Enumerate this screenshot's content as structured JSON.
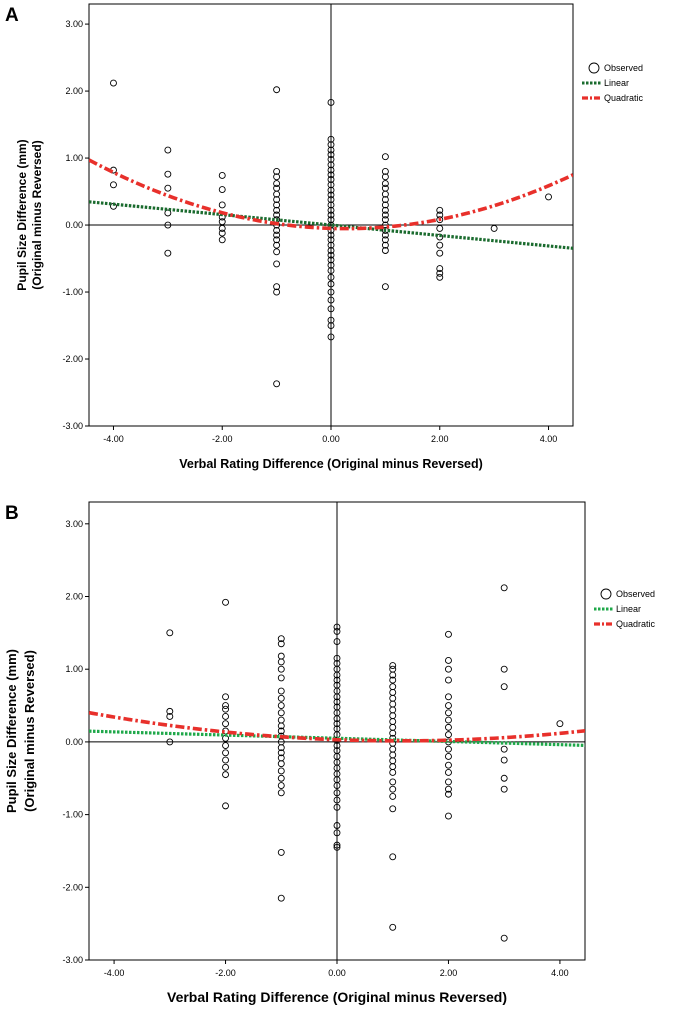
{
  "chart_data": [
    {
      "type": "scatter",
      "panel": "A",
      "xlabel": "Verbal Rating Difference (Original minus Reversed)",
      "ylabel_line1": "Pupil Size Difference (mm)",
      "ylabel_line2": "(Original minus Reversed)",
      "xlim": [
        -4.45,
        4.45
      ],
      "ylim": [
        -3.0,
        3.3
      ],
      "xticks": [
        -4,
        -2,
        0,
        2,
        4
      ],
      "xtick_labels": [
        "-4.00",
        "-2.00",
        "0.00",
        "2.00",
        "4.00"
      ],
      "yticks": [
        -3,
        -2,
        -1,
        0,
        1,
        2,
        3
      ],
      "ytick_labels": [
        "-3.00",
        "-2.00",
        "-1.00",
        "0.00",
        "1.00",
        "2.00",
        "3.00"
      ],
      "legend": [
        "Observed",
        "Linear",
        "Quadratic"
      ],
      "legend_position": "right",
      "fits": {
        "linear": {
          "intercept": 0.0,
          "slope": -0.078,
          "color": "#1a6b2e"
        },
        "quadratic": {
          "a": 0.046,
          "b": -0.025,
          "c": -0.05,
          "color": "#e8302b"
        }
      },
      "points": [
        [
          -4,
          2.12
        ],
        [
          -4,
          0.82
        ],
        [
          -4,
          0.6
        ],
        [
          -4,
          0.28
        ],
        [
          -3,
          1.12
        ],
        [
          -3,
          0.76
        ],
        [
          -3,
          0.55
        ],
        [
          -3,
          0.18
        ],
        [
          -3,
          0.0
        ],
        [
          -3,
          -0.42
        ],
        [
          -2,
          0.74
        ],
        [
          -2,
          0.53
        ],
        [
          -2,
          0.3
        ],
        [
          -2,
          0.12
        ],
        [
          -2,
          0.05
        ],
        [
          -2,
          -0.05
        ],
        [
          -2,
          -0.12
        ],
        [
          -2,
          -0.22
        ],
        [
          -1,
          2.02
        ],
        [
          -1,
          0.8
        ],
        [
          -1,
          0.72
        ],
        [
          -1,
          0.62
        ],
        [
          -1,
          0.55
        ],
        [
          -1,
          0.46
        ],
        [
          -1,
          0.38
        ],
        [
          -1,
          0.3
        ],
        [
          -1,
          0.22
        ],
        [
          -1,
          0.15
        ],
        [
          -1,
          0.08
        ],
        [
          -1,
          0.0
        ],
        [
          -1,
          -0.08
        ],
        [
          -1,
          -0.15
        ],
        [
          -1,
          -0.22
        ],
        [
          -1,
          -0.3
        ],
        [
          -1,
          -0.4
        ],
        [
          -1,
          -0.58
        ],
        [
          -1,
          -0.92
        ],
        [
          -1,
          -1.0
        ],
        [
          -1,
          -2.37
        ],
        [
          0,
          1.83
        ],
        [
          0,
          1.28
        ],
        [
          0,
          1.2
        ],
        [
          0,
          1.12
        ],
        [
          0,
          1.05
        ],
        [
          0,
          0.98
        ],
        [
          0,
          0.9
        ],
        [
          0,
          0.82
        ],
        [
          0,
          0.75
        ],
        [
          0,
          0.68
        ],
        [
          0,
          0.6
        ],
        [
          0,
          0.52
        ],
        [
          0,
          0.45
        ],
        [
          0,
          0.38
        ],
        [
          0,
          0.3
        ],
        [
          0,
          0.22
        ],
        [
          0,
          0.15
        ],
        [
          0,
          0.08
        ],
        [
          0,
          0.0
        ],
        [
          0,
          -0.08
        ],
        [
          0,
          -0.15
        ],
        [
          0,
          -0.22
        ],
        [
          0,
          -0.3
        ],
        [
          0,
          -0.38
        ],
        [
          0,
          -0.45
        ],
        [
          0,
          -0.52
        ],
        [
          0,
          -0.6
        ],
        [
          0,
          -0.68
        ],
        [
          0,
          -0.78
        ],
        [
          0,
          -0.88
        ],
        [
          0,
          -1.0
        ],
        [
          0,
          -1.12
        ],
        [
          0,
          -1.25
        ],
        [
          0,
          -1.42
        ],
        [
          0,
          -1.5
        ],
        [
          0,
          -1.67
        ],
        [
          1,
          1.02
        ],
        [
          1,
          0.8
        ],
        [
          1,
          0.72
        ],
        [
          1,
          0.62
        ],
        [
          1,
          0.55
        ],
        [
          1,
          0.46
        ],
        [
          1,
          0.38
        ],
        [
          1,
          0.3
        ],
        [
          1,
          0.22
        ],
        [
          1,
          0.15
        ],
        [
          1,
          0.08
        ],
        [
          1,
          0.0
        ],
        [
          1,
          -0.08
        ],
        [
          1,
          -0.15
        ],
        [
          1,
          -0.22
        ],
        [
          1,
          -0.3
        ],
        [
          1,
          -0.38
        ],
        [
          1,
          -0.92
        ],
        [
          2,
          0.22
        ],
        [
          2,
          0.15
        ],
        [
          2,
          0.08
        ],
        [
          2,
          -0.05
        ],
        [
          2,
          -0.18
        ],
        [
          2,
          -0.3
        ],
        [
          2,
          -0.42
        ],
        [
          2,
          -0.65
        ],
        [
          2,
          -0.72
        ],
        [
          2,
          -0.78
        ],
        [
          3,
          -0.05
        ],
        [
          4,
          0.42
        ]
      ]
    },
    {
      "type": "scatter",
      "panel": "B",
      "xlabel": "Verbal Rating Difference (Original minus Reversed)",
      "ylabel_line1": "Pupil Size Difference (mm)",
      "ylabel_line2": "(Original minus Reversed)",
      "xlim": [
        -4.45,
        4.45
      ],
      "ylim": [
        -3.0,
        3.3
      ],
      "xticks": [
        -4,
        -2,
        0,
        2,
        4
      ],
      "xtick_labels": [
        "-4.00",
        "-2.00",
        "0.00",
        "2.00",
        "4.00"
      ],
      "yticks": [
        -3,
        -2,
        -1,
        0,
        1,
        2,
        3
      ],
      "ytick_labels": [
        "-3.00",
        "-2.00",
        "-1.00",
        "0.00",
        "1.00",
        "2.00",
        "3.00"
      ],
      "legend": [
        "Observed",
        "Linear",
        "Quadratic"
      ],
      "legend_position": "right",
      "fits": {
        "linear": {
          "intercept": 0.05,
          "slope": -0.022,
          "color": "#1fa84a"
        },
        "quadratic": {
          "a": 0.0125,
          "b": -0.028,
          "c": 0.03,
          "color": "#e8302b"
        }
      },
      "points": [
        [
          -3,
          1.5
        ],
        [
          -3,
          0.42
        ],
        [
          -3,
          0.35
        ],
        [
          -3,
          0.0
        ],
        [
          -2,
          1.92
        ],
        [
          -2,
          0.62
        ],
        [
          -2,
          0.5
        ],
        [
          -2,
          0.45
        ],
        [
          -2,
          0.35
        ],
        [
          -2,
          0.25
        ],
        [
          -2,
          0.15
        ],
        [
          -2,
          0.05
        ],
        [
          -2,
          -0.05
        ],
        [
          -2,
          -0.15
        ],
        [
          -2,
          -0.25
        ],
        [
          -2,
          -0.35
        ],
        [
          -2,
          -0.45
        ],
        [
          -2,
          -0.88
        ],
        [
          -1,
          1.42
        ],
        [
          -1,
          1.35
        ],
        [
          -1,
          1.18
        ],
        [
          -1,
          1.1
        ],
        [
          -1,
          1.0
        ],
        [
          -1,
          0.88
        ],
        [
          -1,
          0.7
        ],
        [
          -1,
          0.6
        ],
        [
          -1,
          0.5
        ],
        [
          -1,
          0.4
        ],
        [
          -1,
          0.3
        ],
        [
          -1,
          0.22
        ],
        [
          -1,
          0.15
        ],
        [
          -1,
          0.08
        ],
        [
          -1,
          0.0
        ],
        [
          -1,
          -0.08
        ],
        [
          -1,
          -0.15
        ],
        [
          -1,
          -0.22
        ],
        [
          -1,
          -0.3
        ],
        [
          -1,
          -0.4
        ],
        [
          -1,
          -0.5
        ],
        [
          -1,
          -0.6
        ],
        [
          -1,
          -0.7
        ],
        [
          -1,
          -1.52
        ],
        [
          -1,
          -2.15
        ],
        [
          0,
          1.58
        ],
        [
          0,
          1.52
        ],
        [
          0,
          1.38
        ],
        [
          0,
          1.15
        ],
        [
          0,
          1.08
        ],
        [
          0,
          1.0
        ],
        [
          0,
          0.92
        ],
        [
          0,
          0.85
        ],
        [
          0,
          0.78
        ],
        [
          0,
          0.7
        ],
        [
          0,
          0.62
        ],
        [
          0,
          0.55
        ],
        [
          0,
          0.48
        ],
        [
          0,
          0.4
        ],
        [
          0,
          0.32
        ],
        [
          0,
          0.25
        ],
        [
          0,
          0.18
        ],
        [
          0,
          0.1
        ],
        [
          0,
          0.02
        ],
        [
          0,
          -0.05
        ],
        [
          0,
          -0.12
        ],
        [
          0,
          -0.2
        ],
        [
          0,
          -0.28
        ],
        [
          0,
          -0.36
        ],
        [
          0,
          -0.44
        ],
        [
          0,
          -0.52
        ],
        [
          0,
          -0.6
        ],
        [
          0,
          -0.7
        ],
        [
          0,
          -0.8
        ],
        [
          0,
          -0.9
        ],
        [
          0,
          -1.15
        ],
        [
          0,
          -1.25
        ],
        [
          0,
          -1.42
        ],
        [
          0,
          -1.45
        ],
        [
          1,
          1.05
        ],
        [
          1,
          1.0
        ],
        [
          1,
          0.92
        ],
        [
          1,
          0.85
        ],
        [
          1,
          0.76
        ],
        [
          1,
          0.68
        ],
        [
          1,
          0.6
        ],
        [
          1,
          0.52
        ],
        [
          1,
          0.44
        ],
        [
          1,
          0.36
        ],
        [
          1,
          0.28
        ],
        [
          1,
          0.2
        ],
        [
          1,
          0.12
        ],
        [
          1,
          0.05
        ],
        [
          1,
          -0.02
        ],
        [
          1,
          -0.1
        ],
        [
          1,
          -0.18
        ],
        [
          1,
          -0.26
        ],
        [
          1,
          -0.34
        ],
        [
          1,
          -0.42
        ],
        [
          1,
          -0.55
        ],
        [
          1,
          -0.65
        ],
        [
          1,
          -0.75
        ],
        [
          1,
          -0.92
        ],
        [
          1,
          -1.58
        ],
        [
          1,
          -2.55
        ],
        [
          2,
          1.48
        ],
        [
          2,
          1.12
        ],
        [
          2,
          1.0
        ],
        [
          2,
          0.85
        ],
        [
          2,
          0.62
        ],
        [
          2,
          0.5
        ],
        [
          2,
          0.4
        ],
        [
          2,
          0.3
        ],
        [
          2,
          0.2
        ],
        [
          2,
          0.1
        ],
        [
          2,
          0.0
        ],
        [
          2,
          -0.1
        ],
        [
          2,
          -0.2
        ],
        [
          2,
          -0.32
        ],
        [
          2,
          -0.42
        ],
        [
          2,
          -0.55
        ],
        [
          2,
          -0.65
        ],
        [
          2,
          -0.72
        ],
        [
          2,
          -1.02
        ],
        [
          3,
          2.12
        ],
        [
          3,
          1.0
        ],
        [
          3,
          0.76
        ],
        [
          3,
          -0.1
        ],
        [
          3,
          -0.25
        ],
        [
          3,
          -0.5
        ],
        [
          3,
          -0.65
        ],
        [
          3,
          -2.7
        ],
        [
          4,
          0.25
        ]
      ]
    }
  ]
}
